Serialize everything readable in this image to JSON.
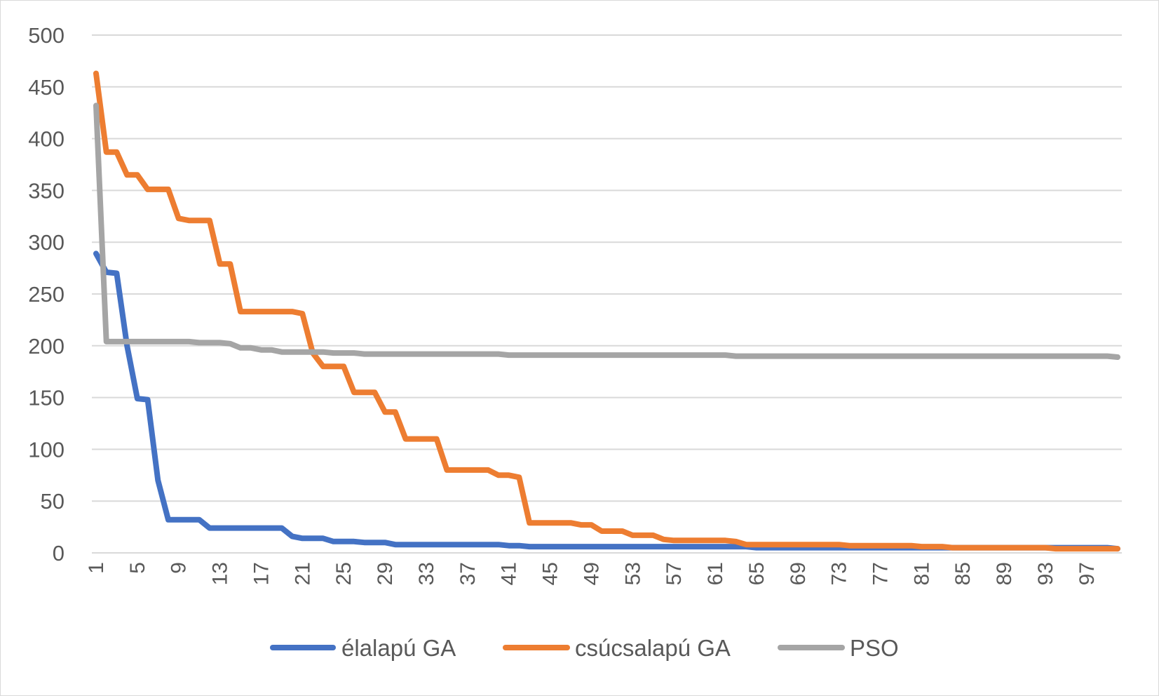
{
  "chart_data": {
    "type": "line",
    "title": "",
    "xlabel": "",
    "ylabel": "",
    "ylim": [
      0,
      500
    ],
    "yticks": [
      0,
      50,
      100,
      150,
      200,
      250,
      300,
      350,
      400,
      450,
      500
    ],
    "x": [
      1,
      2,
      3,
      4,
      5,
      6,
      7,
      8,
      9,
      10,
      11,
      12,
      13,
      14,
      15,
      16,
      17,
      18,
      19,
      20,
      21,
      22,
      23,
      24,
      25,
      26,
      27,
      28,
      29,
      30,
      31,
      32,
      33,
      34,
      35,
      36,
      37,
      38,
      39,
      40,
      41,
      42,
      43,
      44,
      45,
      46,
      47,
      48,
      49,
      50,
      51,
      52,
      53,
      54,
      55,
      56,
      57,
      58,
      59,
      60,
      61,
      62,
      63,
      64,
      65,
      66,
      67,
      68,
      69,
      70,
      71,
      72,
      73,
      74,
      75,
      76,
      77,
      78,
      79,
      80,
      81,
      82,
      83,
      84,
      85,
      86,
      87,
      88,
      89,
      90,
      91,
      92,
      93,
      94,
      95,
      96,
      97,
      98,
      99,
      100
    ],
    "x_tick_labels": [
      "1",
      "5",
      "9",
      "13",
      "17",
      "21",
      "25",
      "29",
      "33",
      "37",
      "41",
      "45",
      "49",
      "53",
      "57",
      "61",
      "65",
      "69",
      "73",
      "77",
      "81",
      "85",
      "89",
      "93",
      "97"
    ],
    "grid": true,
    "legend_position": "bottom",
    "series": [
      {
        "name": "élalapú GA",
        "color": "#4472c4",
        "values": [
          289,
          271,
          270,
          200,
          149,
          148,
          70,
          32,
          32,
          32,
          32,
          24,
          24,
          24,
          24,
          24,
          24,
          24,
          24,
          16,
          14,
          14,
          14,
          11,
          11,
          11,
          10,
          10,
          10,
          8,
          8,
          8,
          8,
          8,
          8,
          8,
          8,
          8,
          8,
          8,
          7,
          7,
          6,
          6,
          6,
          6,
          6,
          6,
          6,
          6,
          6,
          6,
          6,
          6,
          6,
          6,
          6,
          6,
          6,
          6,
          6,
          6,
          6,
          6,
          5,
          5,
          5,
          5,
          5,
          5,
          5,
          5,
          5,
          5,
          5,
          5,
          5,
          5,
          5,
          5,
          5,
          5,
          5,
          5,
          5,
          5,
          5,
          5,
          5,
          5,
          5,
          5,
          5,
          5,
          5,
          5,
          5,
          5,
          5,
          4
        ]
      },
      {
        "name": "csúcsalapú GA",
        "color": "#ed7d31",
        "values": [
          463,
          387,
          387,
          365,
          365,
          351,
          351,
          351,
          323,
          321,
          321,
          321,
          279,
          279,
          233,
          233,
          233,
          233,
          233,
          233,
          231,
          193,
          180,
          180,
          180,
          155,
          155,
          155,
          136,
          136,
          110,
          110,
          110,
          110,
          80,
          80,
          80,
          80,
          80,
          75,
          75,
          73,
          29,
          29,
          29,
          29,
          29,
          27,
          27,
          21,
          21,
          21,
          17,
          17,
          17,
          13,
          12,
          12,
          12,
          12,
          12,
          12,
          11,
          8,
          8,
          8,
          8,
          8,
          8,
          8,
          8,
          8,
          8,
          7,
          7,
          7,
          7,
          7,
          7,
          7,
          6,
          6,
          6,
          5,
          5,
          5,
          5,
          5,
          5,
          5,
          5,
          5,
          5,
          4,
          4,
          4,
          4,
          4,
          4,
          4
        ]
      },
      {
        "name": "PSO",
        "color": "#a5a5a5",
        "values": [
          432,
          204,
          204,
          204,
          204,
          204,
          204,
          204,
          204,
          204,
          203,
          203,
          203,
          202,
          198,
          198,
          196,
          196,
          194,
          194,
          194,
          194,
          194,
          193,
          193,
          193,
          192,
          192,
          192,
          192,
          192,
          192,
          192,
          192,
          192,
          192,
          192,
          192,
          192,
          192,
          191,
          191,
          191,
          191,
          191,
          191,
          191,
          191,
          191,
          191,
          191,
          191,
          191,
          191,
          191,
          191,
          191,
          191,
          191,
          191,
          191,
          191,
          190,
          190,
          190,
          190,
          190,
          190,
          190,
          190,
          190,
          190,
          190,
          190,
          190,
          190,
          190,
          190,
          190,
          190,
          190,
          190,
          190,
          190,
          190,
          190,
          190,
          190,
          190,
          190,
          190,
          190,
          190,
          190,
          190,
          190,
          190,
          190,
          190,
          189
        ]
      }
    ]
  }
}
